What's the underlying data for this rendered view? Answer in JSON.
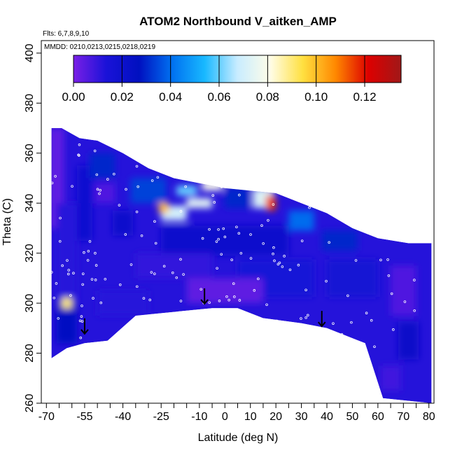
{
  "chart_data": {
    "type": "heatmap",
    "title": "ATOM2 Northbound V_aitken_AMP",
    "flights_label": "Flts: 6,7,8,9,10",
    "dates_label": "MMDD: 0210,0213,0215,0218,0219",
    "xlabel": "Latitude (deg N)",
    "ylabel": "Theta (C)",
    "xlim": [
      -72,
      82
    ],
    "ylim": [
      260,
      405
    ],
    "x_ticks": [
      -70,
      -55,
      -40,
      -25,
      -10,
      0,
      10,
      20,
      30,
      40,
      50,
      60,
      70,
      80
    ],
    "x_ticks_labels": [
      "-70",
      "-55",
      "-40",
      "-25",
      "-10",
      "0",
      "10",
      "20",
      "30",
      "40",
      "50",
      "60",
      "70",
      "80"
    ],
    "x_minor_ticks": [
      -65,
      -60,
      -50,
      -45,
      -35,
      -30,
      -20,
      -15,
      -5,
      5,
      15,
      25,
      35,
      45,
      55,
      65,
      75
    ],
    "y_ticks": [
      260,
      280,
      300,
      320,
      340,
      360,
      380,
      400
    ],
    "y_ticks_labels": [
      "260",
      "280",
      "300",
      "320",
      "340",
      "360",
      "380",
      "400"
    ],
    "colorbar": {
      "range": [
        0,
        0.135
      ],
      "ticks": [
        0.0,
        0.02,
        0.04,
        0.06,
        0.08,
        0.1,
        0.12
      ],
      "tick_labels": [
        "0.00",
        "0.02",
        "0.04",
        "0.06",
        "0.08",
        "0.10",
        "0.12"
      ],
      "colors": [
        "#7a1fe6",
        "#1a12d8",
        "#0010c0",
        "#0070f0",
        "#18b8ff",
        "#c8ecff",
        "#fffde8",
        "#ffe040",
        "#ff8800",
        "#dd0000",
        "#a01818"
      ]
    },
    "domain_upper": [
      [
        -68,
        278
      ],
      [
        -68,
        370
      ],
      [
        -64,
        370
      ],
      [
        -57,
        366
      ],
      [
        -50,
        365
      ],
      [
        -40,
        360
      ],
      [
        -30,
        354
      ],
      [
        -20,
        350
      ],
      [
        0,
        346
      ],
      [
        20,
        344
      ],
      [
        30,
        340
      ],
      [
        40,
        336
      ],
      [
        50,
        330
      ],
      [
        60,
        326
      ],
      [
        72,
        324
      ],
      [
        81,
        324
      ]
    ],
    "domain_lower": [
      [
        81,
        260
      ],
      [
        62,
        262
      ],
      [
        55,
        284
      ],
      [
        40,
        290
      ],
      [
        30,
        292
      ],
      [
        15,
        294
      ],
      [
        5,
        298
      ],
      [
        -5,
        298
      ],
      [
        -15,
        297
      ],
      [
        -35,
        295
      ],
      [
        -46,
        285
      ],
      [
        -55,
        284
      ],
      [
        -62,
        282
      ],
      [
        -68,
        278
      ]
    ],
    "values": [
      {
        "x": -66,
        "y": 350,
        "v": 0.004,
        "w": 6,
        "h": 40
      },
      {
        "x": -62,
        "y": 320,
        "v": 0.012,
        "w": 8,
        "h": 40
      },
      {
        "x": -62,
        "y": 292,
        "v": 0.026,
        "w": 8,
        "h": 16
      },
      {
        "x": -62,
        "y": 300,
        "v": 0.09,
        "w": 4,
        "h": 4
      },
      {
        "x": -55,
        "y": 340,
        "v": 0.018,
        "w": 6,
        "h": 30
      },
      {
        "x": -48,
        "y": 355,
        "v": 0.03,
        "w": 10,
        "h": 10
      },
      {
        "x": -47,
        "y": 344,
        "v": 0.006,
        "w": 8,
        "h": 8
      },
      {
        "x": -40,
        "y": 332,
        "v": 0.02,
        "w": 8,
        "h": 10
      },
      {
        "x": -30,
        "y": 345,
        "v": 0.034,
        "w": 14,
        "h": 10
      },
      {
        "x": -20,
        "y": 336,
        "v": 0.07,
        "w": 10,
        "h": 6
      },
      {
        "x": -24,
        "y": 338,
        "v": 0.1,
        "w": 4,
        "h": 4
      },
      {
        "x": -10,
        "y": 340,
        "v": 0.074,
        "w": 10,
        "h": 4
      },
      {
        "x": -15,
        "y": 345,
        "v": 0.06,
        "w": 8,
        "h": 4
      },
      {
        "x": -5,
        "y": 347,
        "v": 0.08,
        "w": 8,
        "h": 4
      },
      {
        "x": 5,
        "y": 342,
        "v": 0.03,
        "w": 10,
        "h": 8
      },
      {
        "x": 15,
        "y": 342,
        "v": 0.072,
        "w": 8,
        "h": 8
      },
      {
        "x": 18,
        "y": 340,
        "v": 0.115,
        "w": 4,
        "h": 6
      },
      {
        "x": 30,
        "y": 333,
        "v": 0.04,
        "w": 10,
        "h": 8
      },
      {
        "x": 45,
        "y": 325,
        "v": 0.03,
        "w": 14,
        "h": 8
      },
      {
        "x": 0,
        "y": 325,
        "v": 0.02,
        "w": 50,
        "h": 12
      },
      {
        "x": -20,
        "y": 315,
        "v": 0.01,
        "w": 30,
        "h": 10
      },
      {
        "x": 20,
        "y": 310,
        "v": 0.014,
        "w": 30,
        "h": 15
      },
      {
        "x": 50,
        "y": 310,
        "v": 0.016,
        "w": 20,
        "h": 15
      },
      {
        "x": 70,
        "y": 305,
        "v": 0.006,
        "w": 10,
        "h": 20
      },
      {
        "x": 72,
        "y": 285,
        "v": 0.022,
        "w": 8,
        "h": 15
      },
      {
        "x": 65,
        "y": 270,
        "v": 0.008,
        "w": 8,
        "h": 10
      },
      {
        "x": 0,
        "y": 305,
        "v": 0.004,
        "w": 30,
        "h": 10
      },
      {
        "x": -40,
        "y": 300,
        "v": 0.012,
        "w": 20,
        "h": 10
      }
    ],
    "arrows": [
      [
        -55,
        290
      ],
      [
        -8,
        302
      ],
      [
        38,
        293
      ]
    ]
  }
}
